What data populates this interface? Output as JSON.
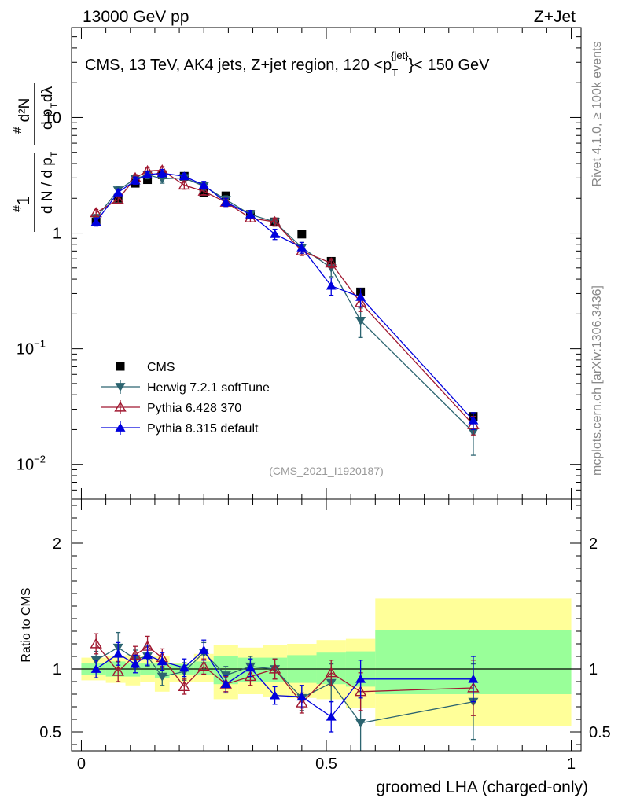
{
  "header": {
    "left": "13000 GeV pp",
    "right": "Z+Jet"
  },
  "side_labels": {
    "rivet": "Rivet 4.1.0, ≥ 100k events",
    "mcplots": "mcplots.cern.ch [arXiv:1306.3436]"
  },
  "chart_data": [
    {
      "type": "scatter",
      "panel": "main",
      "title": "CMS, 13 TeV, AK4 jets, Z+jet region, 120 <p_T^{jet}< 150 GeV",
      "title_parts": {
        "main": "CMS, 13 TeV, AK4 jets, Z+jet region, 120 <p",
        "sub": "T",
        "sup": "{jet}",
        "tail": "}< 150 GeV"
      },
      "ylabel": "1/(dN/dp_T) d^2N/(dp_T dλ)",
      "ylabel_parts": {
        "hash1": "#",
        "num": "1",
        "den": "d N / d p",
        "den_sub": "T",
        "hash2": "#",
        "num2": "d²N",
        "den2": "d p",
        "den2_sub": "T",
        "den2_tail": " dλ"
      },
      "yscale": "log",
      "ylim": [
        0.005,
        60
      ],
      "xlim": [
        -0.02,
        1.02
      ],
      "yticks": [
        {
          "value": 10,
          "label": "10",
          "exp": ""
        },
        {
          "value": 1,
          "label": "1",
          "exp": ""
        },
        {
          "value": 0.1,
          "label": "10",
          "exp": "−1"
        },
        {
          "value": 0.01,
          "label": "10",
          "exp": "−2"
        }
      ],
      "watermark": "(CMS_2021_I1920187)",
      "legend_position": "bottom-left",
      "series": [
        {
          "name": "CMS",
          "marker": "square",
          "color": "#000000",
          "line": false,
          "x": [
            0.03,
            0.075,
            0.11,
            0.135,
            0.165,
            0.21,
            0.25,
            0.295,
            0.345,
            0.395,
            0.45,
            0.51,
            0.57,
            0.8
          ],
          "y": [
            1.25,
            2.0,
            2.7,
            2.9,
            3.2,
            3.1,
            2.25,
            2.1,
            1.45,
            1.25,
            0.98,
            0.57,
            0.31,
            0.026
          ],
          "err": [
            0.05,
            0.08,
            0.1,
            0.1,
            0.1,
            0.1,
            0.08,
            0.08,
            0.06,
            0.05,
            0.04,
            0.03,
            0.02,
            0.002
          ]
        },
        {
          "name": "Herwig 7.2.1 softTune",
          "marker": "triangle-down",
          "color": "#2c6470",
          "line": true,
          "x": [
            0.03,
            0.075,
            0.11,
            0.135,
            0.165,
            0.21,
            0.25,
            0.295,
            0.345,
            0.395,
            0.45,
            0.51,
            0.57,
            0.8
          ],
          "y": [
            1.35,
            2.35,
            2.95,
            3.2,
            2.95,
            3.0,
            2.55,
            1.95,
            1.45,
            1.25,
            0.75,
            0.5,
            0.175,
            0.019
          ],
          "err": [
            0.1,
            0.2,
            0.2,
            0.25,
            0.25,
            0.25,
            0.2,
            0.15,
            0.12,
            0.1,
            0.08,
            0.08,
            0.05,
            0.007
          ]
        },
        {
          "name": "Pythia 6.428 370",
          "marker": "triangle-up-open",
          "color": "#a01830",
          "line": true,
          "x": [
            0.03,
            0.075,
            0.11,
            0.135,
            0.165,
            0.21,
            0.25,
            0.295,
            0.345,
            0.395,
            0.45,
            0.51,
            0.57,
            0.8
          ],
          "y": [
            1.5,
            1.95,
            3.0,
            3.45,
            3.5,
            2.6,
            2.3,
            1.85,
            1.35,
            1.25,
            0.7,
            0.55,
            0.25,
            0.022
          ],
          "err": [
            0.1,
            0.15,
            0.2,
            0.25,
            0.25,
            0.2,
            0.15,
            0.15,
            0.1,
            0.1,
            0.06,
            0.05,
            0.04,
            0.004
          ]
        },
        {
          "name": "Pythia 8.315 default",
          "marker": "triangle-up",
          "color": "#0000dd",
          "line": true,
          "x": [
            0.03,
            0.075,
            0.11,
            0.135,
            0.165,
            0.21,
            0.25,
            0.295,
            0.345,
            0.395,
            0.45,
            0.51,
            0.57,
            0.8
          ],
          "y": [
            1.25,
            2.25,
            2.85,
            3.2,
            3.3,
            3.1,
            2.6,
            1.85,
            1.45,
            0.98,
            0.75,
            0.35,
            0.28,
            0.024
          ],
          "err": [
            0.1,
            0.15,
            0.2,
            0.2,
            0.25,
            0.2,
            0.2,
            0.15,
            0.12,
            0.1,
            0.08,
            0.06,
            0.05,
            0.004
          ]
        }
      ]
    },
    {
      "type": "scatter",
      "panel": "ratio",
      "ylabel": "Ratio to CMS",
      "xlabel": "groomed LHA (charged-only)",
      "ylim": [
        0.35,
        2.35
      ],
      "xlim": [
        -0.02,
        1.02
      ],
      "yticks": [
        {
          "value": 2,
          "label": "2"
        },
        {
          "value": 1,
          "label": "1"
        },
        {
          "value": 0.5,
          "label": "0.5"
        }
      ],
      "xticks": [
        {
          "value": 0,
          "label": "0"
        },
        {
          "value": 0.5,
          "label": "0.5"
        },
        {
          "value": 1,
          "label": "1"
        }
      ],
      "bands": {
        "edges": [
          0.0,
          0.05,
          0.09,
          0.12,
          0.15,
          0.18,
          0.23,
          0.27,
          0.32,
          0.37,
          0.42,
          0.48,
          0.54,
          0.6,
          1.0
        ],
        "yellow_lo": [
          0.91,
          0.89,
          0.87,
          0.9,
          0.82,
          0.9,
          0.9,
          0.76,
          0.8,
          0.78,
          0.77,
          0.76,
          0.69,
          0.55
        ],
        "yellow_hi": [
          1.09,
          1.1,
          1.11,
          1.1,
          1.1,
          1.05,
          1.12,
          1.19,
          1.17,
          1.19,
          1.2,
          1.23,
          1.24,
          1.56
        ],
        "green_lo": [
          0.95,
          0.94,
          0.94,
          0.95,
          0.93,
          0.95,
          0.95,
          0.88,
          0.9,
          0.9,
          0.89,
          0.88,
          0.86,
          0.8
        ],
        "green_hi": [
          1.05,
          1.06,
          1.05,
          1.05,
          1.05,
          1.04,
          1.06,
          1.1,
          1.09,
          1.09,
          1.11,
          1.13,
          1.14,
          1.31
        ]
      },
      "series": [
        {
          "name": "Herwig 7.2.1 softTune",
          "marker": "triangle-down",
          "color": "#2c6470",
          "x": [
            0.03,
            0.075,
            0.11,
            0.135,
            0.165,
            0.21,
            0.25,
            0.295,
            0.345,
            0.395,
            0.45,
            0.51,
            0.57,
            0.8
          ],
          "y": [
            1.07,
            1.17,
            1.08,
            1.1,
            0.94,
            0.98,
            1.13,
            0.95,
            1.02,
            1.0,
            0.77,
            0.89,
            0.57,
            0.74
          ],
          "err": [
            0.07,
            0.12,
            0.07,
            0.08,
            0.07,
            0.07,
            0.08,
            0.07,
            0.08,
            0.08,
            0.1,
            0.15,
            0.25,
            0.3
          ]
        },
        {
          "name": "Pythia 6.428 370",
          "marker": "triangle-up-open",
          "color": "#a01830",
          "x": [
            0.03,
            0.075,
            0.11,
            0.135,
            0.165,
            0.21,
            0.25,
            0.295,
            0.345,
            0.395,
            0.45,
            0.51,
            0.57,
            0.8
          ],
          "y": [
            1.2,
            0.98,
            1.11,
            1.18,
            1.09,
            0.86,
            1.02,
            0.88,
            0.94,
            1.0,
            0.73,
            0.97,
            0.82,
            0.85
          ],
          "err": [
            0.08,
            0.08,
            0.07,
            0.08,
            0.07,
            0.06,
            0.06,
            0.06,
            0.07,
            0.08,
            0.08,
            0.1,
            0.15,
            0.22
          ]
        },
        {
          "name": "Pythia 8.315 default",
          "marker": "triangle-up",
          "color": "#0000dd",
          "x": [
            0.03,
            0.075,
            0.11,
            0.135,
            0.165,
            0.21,
            0.25,
            0.295,
            0.345,
            0.395,
            0.45,
            0.51,
            0.57,
            0.8
          ],
          "y": [
            1.0,
            1.12,
            1.04,
            1.11,
            1.06,
            1.01,
            1.15,
            0.88,
            1.01,
            0.79,
            0.78,
            0.62,
            0.92,
            0.92
          ],
          "err": [
            0.07,
            0.09,
            0.07,
            0.08,
            0.07,
            0.07,
            0.08,
            0.07,
            0.07,
            0.07,
            0.09,
            0.12,
            0.15,
            0.18
          ]
        }
      ]
    }
  ]
}
